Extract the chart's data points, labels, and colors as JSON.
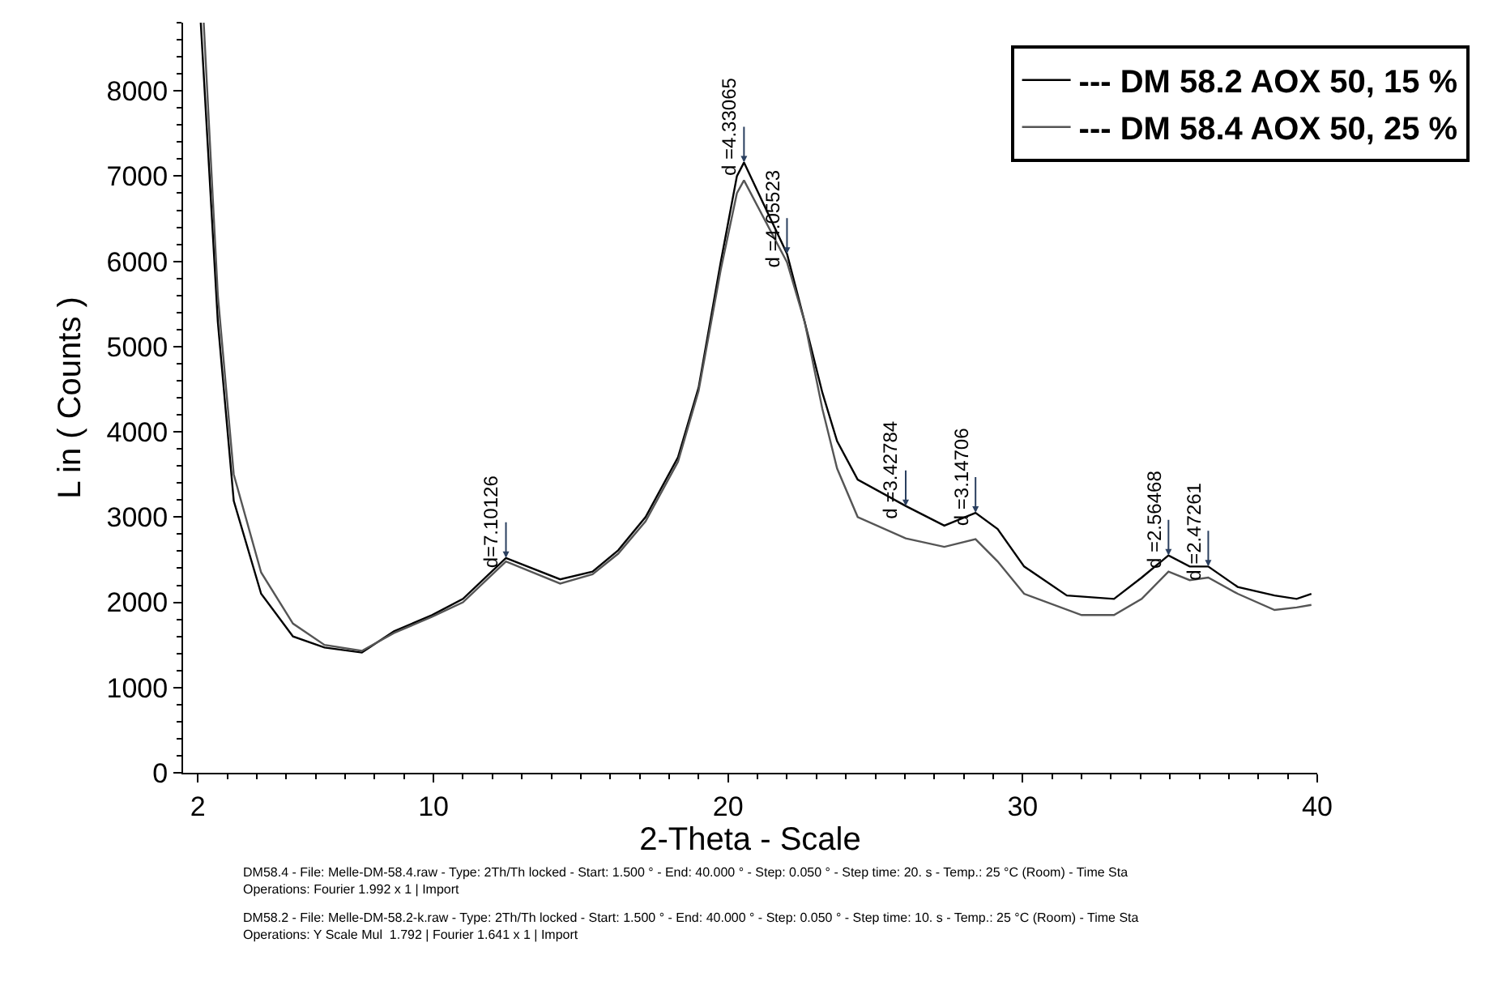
{
  "chart_data": {
    "type": "line",
    "xlabel": "2-Theta - Scale",
    "ylabel": "L in ( Counts )",
    "xlim": [
      1.5,
      40
    ],
    "ylim": [
      0,
      8800
    ],
    "xticks": [
      2,
      10,
      20,
      30,
      40
    ],
    "yticks": [
      0,
      1000,
      2000,
      3000,
      4000,
      5000,
      6000,
      7000,
      8000
    ],
    "legend": "top right",
    "marker": "none",
    "line_style": "solid",
    "series": [
      {
        "name": "--- DM 58.2 AOX 50, 15 %",
        "color": "#000000",
        "x": [
          2.1,
          2.68,
          3.22,
          4.15,
          5.23,
          6.3,
          7.57,
          8.66,
          9.95,
          11.0,
          12.46,
          14.3,
          15.4,
          16.27,
          17.2,
          18.3,
          19.0,
          19.75,
          20.3,
          20.54,
          22.0,
          22.6,
          23.2,
          23.7,
          24.4,
          26.03,
          27.34,
          28.4,
          29.15,
          30.05,
          31.5,
          33.1,
          34.04,
          34.95,
          35.67,
          36.3,
          37.3,
          38.55,
          39.3,
          39.8
        ],
        "values": [
          8800,
          5290,
          3190,
          2100,
          1600,
          1470,
          1410,
          1660,
          1850,
          2040,
          2520,
          2270,
          2360,
          2610,
          3000,
          3700,
          4520,
          5990,
          7000,
          7160,
          6090,
          5290,
          4460,
          3890,
          3440,
          3130,
          2900,
          3050,
          2860,
          2420,
          2080,
          2040,
          2290,
          2550,
          2420,
          2420,
          2180,
          2080,
          2040,
          2100
        ]
      },
      {
        "name": "--- DM 58.4 AOX 50, 25 %",
        "color": "#555555",
        "x": [
          2.2,
          2.68,
          3.22,
          4.15,
          5.23,
          6.3,
          7.57,
          8.66,
          9.95,
          11.0,
          12.46,
          14.3,
          15.4,
          16.27,
          17.2,
          18.3,
          19.0,
          19.75,
          20.3,
          20.54,
          22.0,
          22.6,
          23.2,
          23.7,
          24.4,
          26.03,
          27.34,
          28.4,
          29.15,
          30.05,
          32.0,
          33.1,
          34.04,
          34.95,
          35.67,
          36.3,
          37.3,
          38.55,
          39.3,
          39.8
        ],
        "values": [
          8800,
          5600,
          3500,
          2350,
          1750,
          1500,
          1430,
          1640,
          1830,
          2000,
          2480,
          2220,
          2330,
          2570,
          2950,
          3650,
          4480,
          5900,
          6800,
          6950,
          5990,
          5290,
          4270,
          3570,
          3000,
          2750,
          2650,
          2740,
          2480,
          2100,
          1850,
          1850,
          2040,
          2360,
          2260,
          2290,
          2100,
          1910,
          1940,
          1970
        ]
      }
    ],
    "annotations": [
      {
        "text": "d=7.10126",
        "x": 12.46,
        "y": 2520
      },
      {
        "text": "d =4.33065",
        "x": 20.54,
        "y": 7160
      },
      {
        "text": "d =4.05523",
        "x": 22.0,
        "y": 6090
      },
      {
        "text": "d =3.42784",
        "x": 26.03,
        "y": 3130
      },
      {
        "text": "d =3.14706",
        "x": 28.4,
        "y": 3050
      },
      {
        "text": "d =2.56468",
        "x": 34.95,
        "y": 2550
      },
      {
        "text": "d =2.47261",
        "x": 36.3,
        "y": 2420
      },
      "DM58.4 - File: Melle-DM-58.4.raw - Type: 2Th/Th locked - Start: 1.500 ° - End: 40.000 ° - Step: 0.050 ° - Step time: 20. s - Temp.: 25 °C (Room) - Time Sta\nOperations: Fourier 1.992 x 1 | Import",
      "DM58.2 - File: Melle-DM-58.2-k.raw - Type: 2Th/Th locked - Start: 1.500 ° - End: 40.000 ° - Step: 0.050 ° - Step time: 10. s - Temp.: 25 °C (Room) - Time Sta\nOperations: Y Scale Mul  1.792 | Fourier 1.641 x 1 | Import"
    ]
  }
}
